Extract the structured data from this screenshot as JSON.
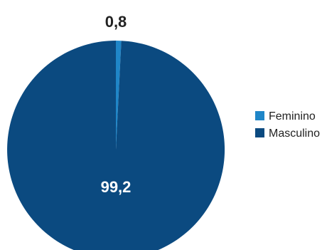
{
  "chart_data": {
    "type": "pie",
    "slices": [
      {
        "label": "Feminino",
        "value": 0.8,
        "display": "0,8",
        "color": "#1f86c8"
      },
      {
        "label": "Masculino",
        "value": 99.2,
        "display": "99,2",
        "color": "#0b4a80"
      }
    ],
    "legend_position": "right",
    "title": ""
  }
}
